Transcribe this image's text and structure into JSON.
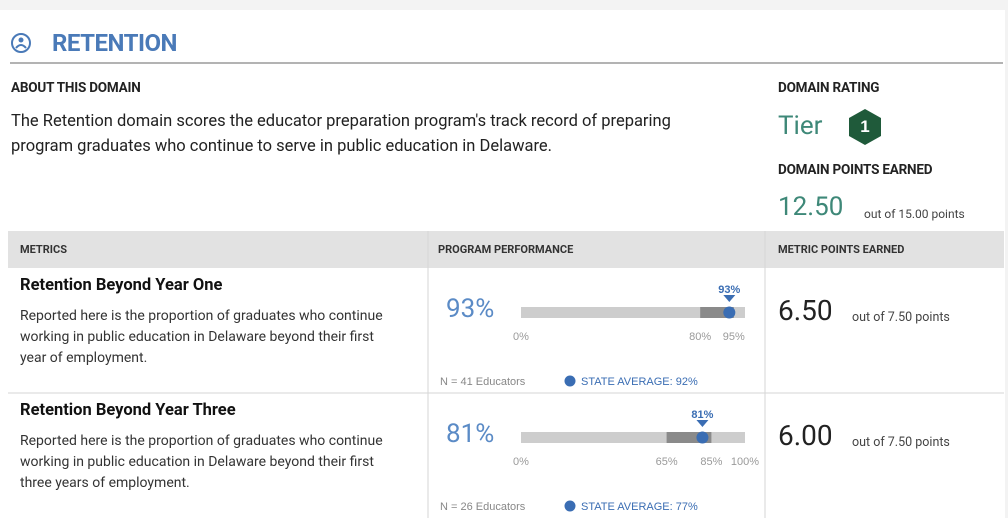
{
  "header": {
    "title": "RETENTION"
  },
  "about": {
    "heading": "ABOUT THIS DOMAIN",
    "text": "The Retention domain scores the educator preparation program's track record of preparing program graduates who continue to serve in public education in Delaware."
  },
  "rating": {
    "heading": "DOMAIN RATING",
    "tier_label": "Tier",
    "tier": "1",
    "points_heading": "DOMAIN POINTS EARNED",
    "points": "12.50",
    "points_out_of": "out of 15.00 points"
  },
  "table": {
    "columns": [
      "METRICS",
      "PROGRAM PERFORMANCE",
      "METRIC POINTS EARNED"
    ],
    "rows": [
      {
        "title": "Retention Beyond Year One",
        "description": "Reported here is the proportion of graduates who continue working in public education in Delaware beyond their first year of employment.",
        "performance": {
          "value": 93,
          "label": "93%"
        },
        "range": [
          0,
          100
        ],
        "band": [
          80,
          95
        ],
        "ticks": [
          {
            "value": 0,
            "label": "0%"
          },
          {
            "value": 80,
            "label": "80%"
          },
          {
            "value": 95,
            "label": "95%"
          }
        ],
        "n": "N = 41 Educators",
        "state_average": "STATE AVERAGE: 92%",
        "points": "6.50",
        "points_out_of": "out of 7.50 points"
      },
      {
        "title": "Retention Beyond Year Three",
        "description": "Reported here is the proportion of graduates who continue working in public education in Delaware beyond their first three years of employment.",
        "performance": {
          "value": 81,
          "label": "81%"
        },
        "range": [
          0,
          100
        ],
        "band": [
          65,
          85
        ],
        "ticks": [
          {
            "value": 0,
            "label": "0%"
          },
          {
            "value": 65,
            "label": "65%"
          },
          {
            "value": 85,
            "label": "85%"
          },
          {
            "value": 100,
            "label": "100%"
          }
        ],
        "n": "N = 26 Educators",
        "state_average": "STATE AVERAGE: 77%",
        "points": "6.00",
        "points_out_of": "out of 7.50 points"
      }
    ]
  }
}
